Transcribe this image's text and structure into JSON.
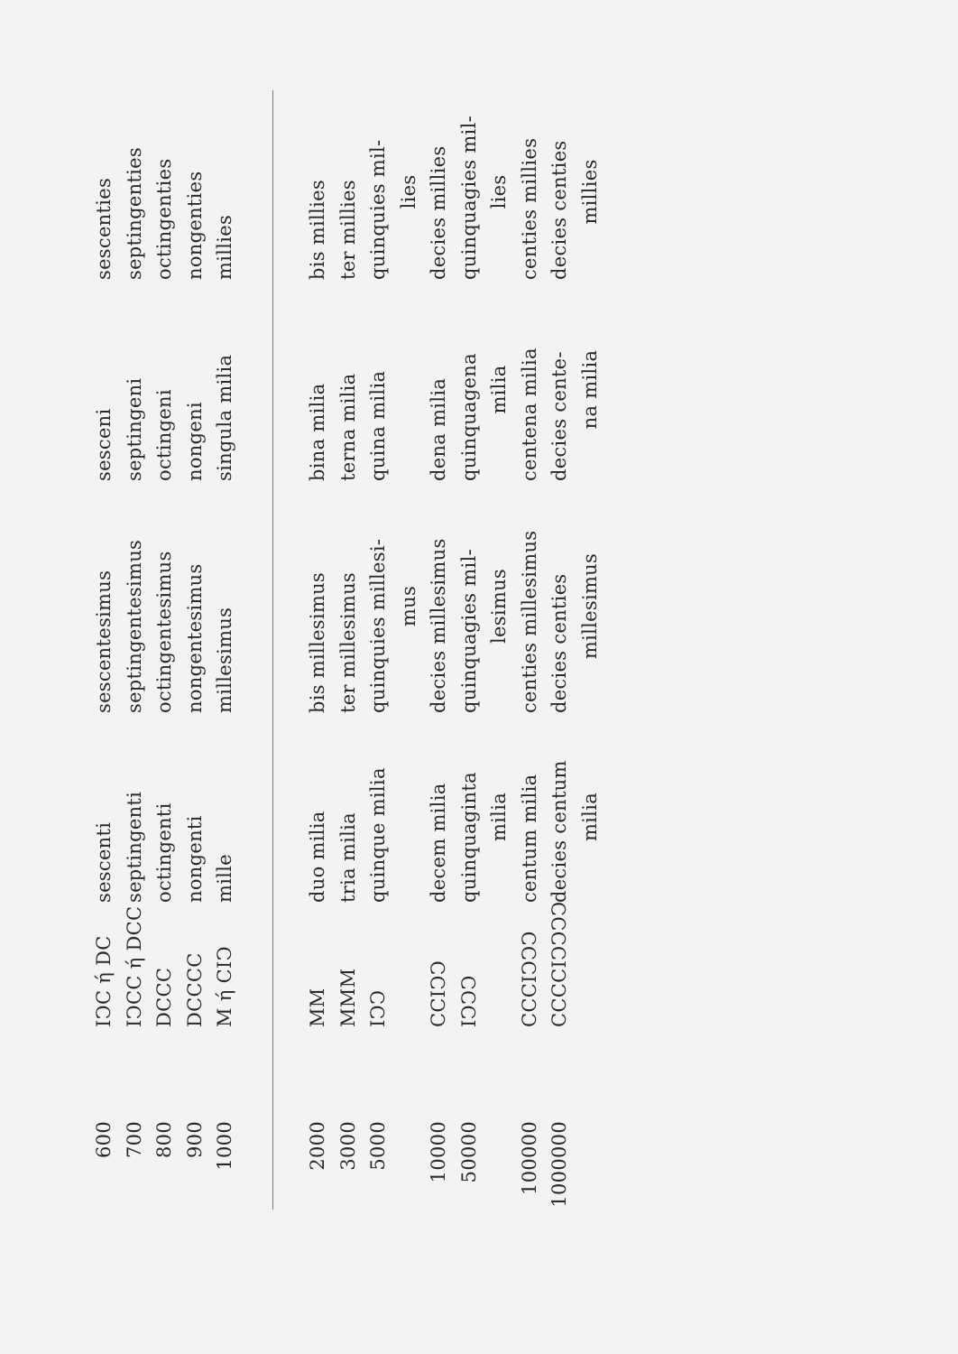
{
  "table": {
    "groups": [
      {
        "rows": [
          {
            "number": "600",
            "roman": [
              "IↃC ή DC"
            ],
            "cardinal": [
              "sescenti"
            ],
            "ordinal": [
              "sescentesimus"
            ],
            "distributive": [
              "sesceni"
            ],
            "adverb": [
              "sescenties"
            ]
          },
          {
            "number": "700",
            "roman": [
              "IↃCC ή DCC"
            ],
            "cardinal": [
              "septingenti"
            ],
            "ordinal": [
              "septingentesimus"
            ],
            "distributive": [
              "septingeni"
            ],
            "adverb": [
              "septingenties"
            ]
          },
          {
            "number": "800",
            "roman": [
              "DCCC"
            ],
            "cardinal": [
              "octingenti"
            ],
            "ordinal": [
              "octingentesimus"
            ],
            "distributive": [
              "octingeni"
            ],
            "adverb": [
              "octingenties"
            ]
          },
          {
            "number": "900",
            "roman": [
              "DCCCC"
            ],
            "cardinal": [
              "nongenti"
            ],
            "ordinal": [
              "nongentesimus"
            ],
            "distributive": [
              "nongeni"
            ],
            "adverb": [
              "nongenties"
            ]
          },
          {
            "number": "1000",
            "roman": [
              "M ή CIↃ"
            ],
            "cardinal": [
              "mille"
            ],
            "ordinal": [
              "millesimus"
            ],
            "distributive": [
              "singula milia"
            ],
            "adverb": [
              "millies"
            ]
          }
        ]
      },
      {
        "rows": [
          {
            "number": "2000",
            "roman": [
              "MM"
            ],
            "cardinal": [
              "duo milia"
            ],
            "ordinal": [
              "bis millesimus"
            ],
            "distributive": [
              "bina milia"
            ],
            "adverb": [
              "bis millies"
            ]
          },
          {
            "number": "3000",
            "roman": [
              "MMM"
            ],
            "cardinal": [
              "tria milia"
            ],
            "ordinal": [
              "ter millesimus"
            ],
            "distributive": [
              "terna milia"
            ],
            "adverb": [
              "ter millies"
            ]
          },
          {
            "number": "5000",
            "roman": [
              "IↃↃ"
            ],
            "cardinal": [
              "quinque milia"
            ],
            "ordinal": [
              "quinquies millesi-",
              "mus"
            ],
            "distributive": [
              "quina milia"
            ],
            "adverb": [
              "quinquies mil-",
              "lies"
            ]
          },
          {
            "number": "10000",
            "roman": [
              "CCIↃↃ"
            ],
            "cardinal": [
              "decem milia"
            ],
            "ordinal": [
              "decies millesimus"
            ],
            "distributive": [
              "dena milia"
            ],
            "adverb": [
              "decies millies"
            ]
          },
          {
            "number": "50000",
            "roman": [
              "IↃↃↃ"
            ],
            "cardinal": [
              "quinquaginta",
              "milia"
            ],
            "ordinal": [
              "quinquagies mil-",
              "lesimus"
            ],
            "distributive": [
              "quinquagena",
              "milia"
            ],
            "adverb": [
              "quinquagies mil-",
              "lies"
            ]
          },
          {
            "number": "100000",
            "roman": [
              "CCCIↃↃↃ"
            ],
            "cardinal": [
              "centum milia"
            ],
            "ordinal": [
              "centies millesimus"
            ],
            "distributive": [
              "centena milia"
            ],
            "adverb": [
              "centies millies"
            ]
          },
          {
            "number": "1000000",
            "roman": [
              "CCCCIↃↃↃↃ"
            ],
            "cardinal": [
              "decies centum",
              "milia"
            ],
            "ordinal": [
              "decies centies",
              "millesimus"
            ],
            "distributive": [
              "decies cente-",
              "na milia"
            ],
            "adverb": [
              "decies centies",
              "millies"
            ]
          }
        ]
      }
    ]
  }
}
